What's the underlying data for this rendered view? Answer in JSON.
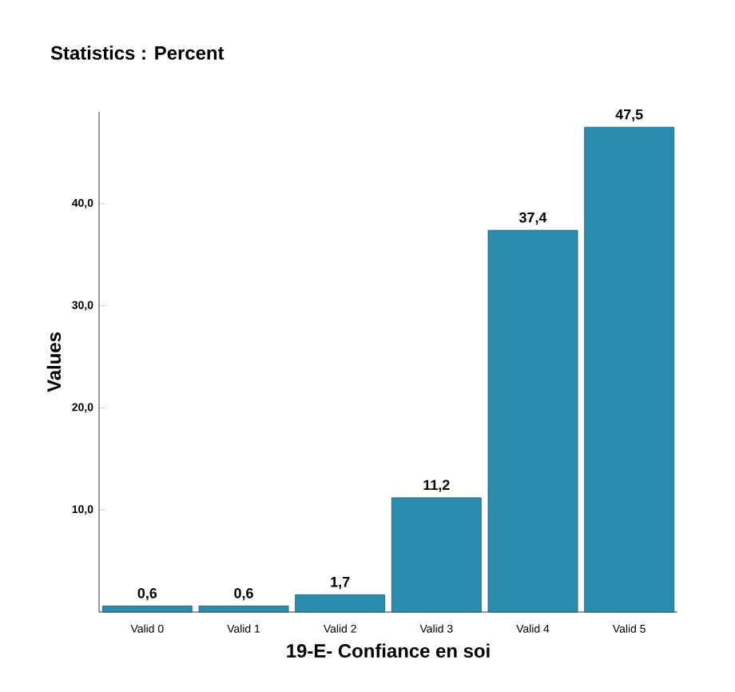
{
  "chart_data": {
    "type": "bar",
    "title": "Statistics : Percent",
    "xlabel": "19-E- Confiance en soi",
    "ylabel": "Values",
    "categories": [
      "Valid 0",
      "Valid 1",
      "Valid 2",
      "Valid 3",
      "Valid 4",
      "Valid 5"
    ],
    "values": [
      0.6,
      0.6,
      1.7,
      11.2,
      37.4,
      47.5
    ],
    "color": "#2b8cae",
    "data_labels": true,
    "value_labels": [
      "0,6",
      "0,6",
      "1,7",
      "11,2",
      "37,4",
      "47,5"
    ],
    "ylim": [
      0,
      49
    ],
    "yticks": [
      {
        "value": 10,
        "label": "10,0"
      },
      {
        "value": 20,
        "label": "20,0"
      },
      {
        "value": 30,
        "label": "30,0"
      },
      {
        "value": 40,
        "label": "40,0"
      }
    ],
    "grid": false
  }
}
